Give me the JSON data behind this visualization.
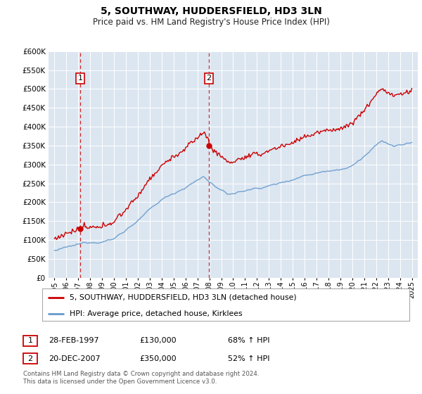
{
  "title": "5, SOUTHWAY, HUDDERSFIELD, HD3 3LN",
  "subtitle": "Price paid vs. HM Land Registry's House Price Index (HPI)",
  "legend_line1": "5, SOUTHWAY, HUDDERSFIELD, HD3 3LN (detached house)",
  "legend_line2": "HPI: Average price, detached house, Kirklees",
  "footnote1": "Contains HM Land Registry data © Crown copyright and database right 2024.",
  "footnote2": "This data is licensed under the Open Government Licence v3.0.",
  "sale1_label": "1",
  "sale1_date": "28-FEB-1997",
  "sale1_price": "£130,000",
  "sale1_hpi": "68% ↑ HPI",
  "sale2_label": "2",
  "sale2_date": "20-DEC-2007",
  "sale2_price": "£350,000",
  "sale2_hpi": "52% ↑ HPI",
  "red_color": "#cc0000",
  "blue_color": "#6699cc",
  "background_color": "#dce6f1",
  "grid_color": "#ffffff",
  "sale1_year": 1997.15,
  "sale1_value": 130000,
  "sale2_year": 2007.97,
  "sale2_value": 350000,
  "ylim": [
    0,
    600000
  ],
  "xlim_start": 1994.5,
  "xlim_end": 2025.5,
  "yticks": [
    0,
    50000,
    100000,
    150000,
    200000,
    250000,
    300000,
    350000,
    400000,
    450000,
    500000,
    550000,
    600000
  ],
  "ytick_labels": [
    "£0",
    "£50K",
    "£100K",
    "£150K",
    "£200K",
    "£250K",
    "£300K",
    "£350K",
    "£400K",
    "£450K",
    "£500K",
    "£550K",
    "£600K"
  ]
}
